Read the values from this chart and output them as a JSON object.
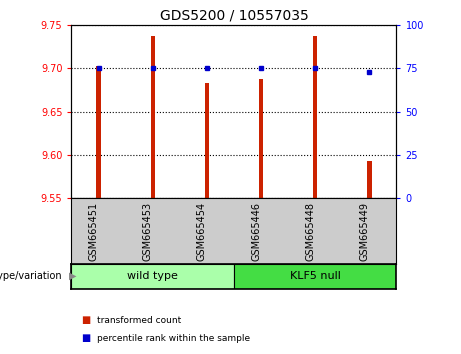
{
  "title": "GDS5200 / 10557035",
  "samples": [
    "GSM665451",
    "GSM665453",
    "GSM665454",
    "GSM665446",
    "GSM665448",
    "GSM665449"
  ],
  "groups": [
    "wild type",
    "wild type",
    "wild type",
    "KLF5 null",
    "KLF5 null",
    "KLF5 null"
  ],
  "transformed_counts": [
    9.703,
    9.737,
    9.683,
    9.687,
    9.737,
    9.593
  ],
  "percentile_ranks": [
    75,
    75,
    75,
    75,
    75,
    73
  ],
  "ylim_left": [
    9.55,
    9.75
  ],
  "ylim_right": [
    0,
    100
  ],
  "yticks_left": [
    9.55,
    9.6,
    9.65,
    9.7,
    9.75
  ],
  "yticks_right": [
    0,
    25,
    50,
    75,
    100
  ],
  "bar_color": "#cc2200",
  "dot_color": "#0000cc",
  "wildtype_color": "#aaffaa",
  "klf5null_color": "#44dd44",
  "label_bg_color": "#cccccc",
  "legend_bar_label": "transformed count",
  "legend_dot_label": "percentile rank within the sample",
  "genotype_label": "genotype/variation",
  "bar_width": 0.08,
  "title_fontsize": 10,
  "tick_fontsize": 7,
  "label_fontsize": 7,
  "group_fontsize": 8
}
